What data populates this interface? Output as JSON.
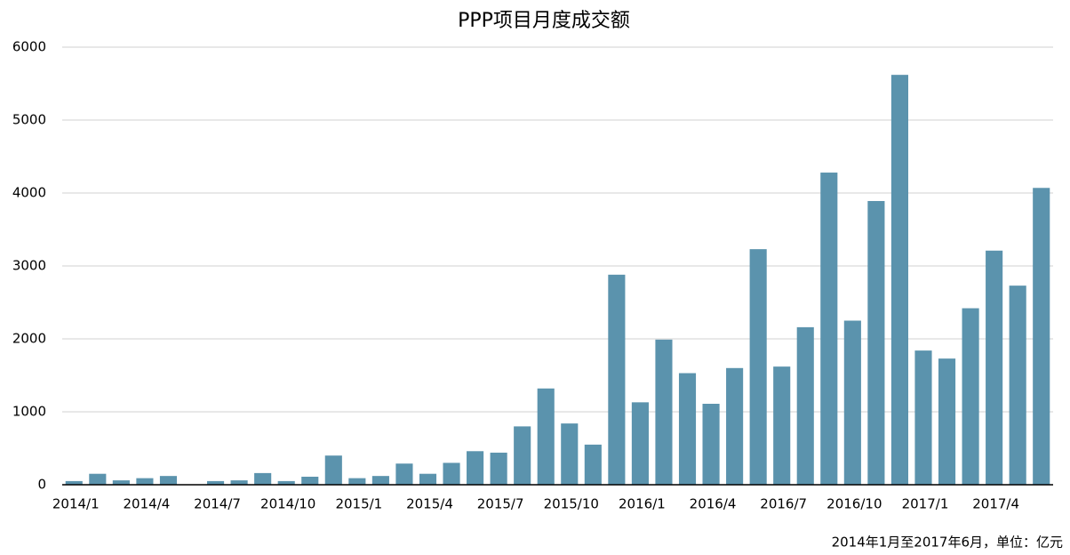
{
  "chart_data": {
    "type": "bar",
    "title": "PPP项目月度成交额",
    "note": "2014年1月至2017年6月，单位：亿元",
    "categories": [
      "2014/1",
      null,
      null,
      "2014/4",
      null,
      null,
      "2014/7",
      null,
      null,
      "2014/10",
      null,
      null,
      "2015/1",
      null,
      null,
      "2015/4",
      null,
      null,
      "2015/7",
      null,
      null,
      "2015/10",
      null,
      null,
      "2016/1",
      null,
      null,
      "2016/4",
      null,
      null,
      "2016/7",
      null,
      null,
      "2016/10",
      null,
      null,
      "2017/1",
      null,
      null,
      "2017/4",
      null,
      null
    ],
    "values": [
      50,
      150,
      60,
      90,
      120,
      0,
      50,
      60,
      160,
      50,
      110,
      400,
      90,
      120,
      290,
      150,
      300,
      460,
      440,
      800,
      1320,
      840,
      550,
      2880,
      1130,
      1990,
      1530,
      1110,
      1600,
      3230,
      1620,
      2160,
      4280,
      2250,
      3890,
      5620,
      1840,
      1730,
      2420,
      3210,
      2730,
      4070
    ],
    "color": "#5b93ad",
    "ylim": [
      0,
      6000
    ],
    "yticks": [
      0,
      1000,
      2000,
      3000,
      4000,
      5000,
      6000
    ],
    "grid": true
  }
}
